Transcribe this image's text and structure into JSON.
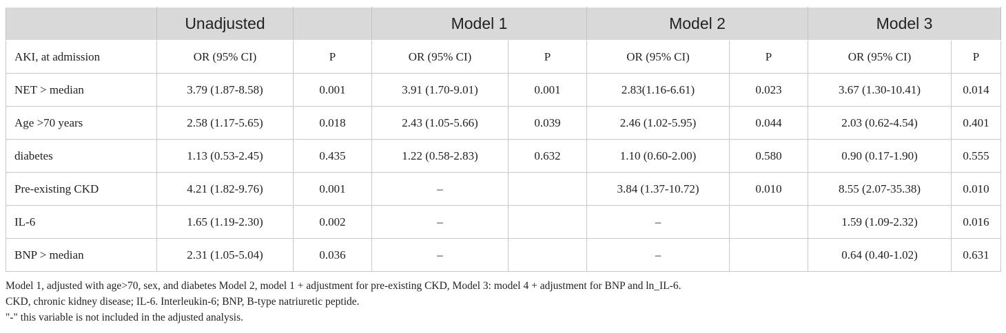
{
  "table": {
    "header": [
      "Unadjusted",
      "Model 1",
      "Model 2",
      "Model 3"
    ],
    "subheader": [
      "AKI, at admission",
      "OR (95% CI)",
      "P",
      "OR (95% CI)",
      "P",
      "OR (95% CI)",
      "P",
      "OR (95% CI)",
      "P"
    ],
    "rows": [
      [
        "NET > median",
        "3.79 (1.87-8.58)",
        "0.001",
        "3.91 (1.70-9.01)",
        "0.001",
        "2.83(1.16-6.61)",
        "0.023",
        "3.67 (1.30-10.41)",
        "0.014"
      ],
      [
        "Age >70 years",
        "2.58 (1.17-5.65)",
        "0.018",
        "2.43 (1.05-5.66)",
        "0.039",
        "2.46 (1.02-5.95)",
        "0.044",
        "2.03 (0.62-4.54)",
        "0.401"
      ],
      [
        "diabetes",
        "1.13 (0.53-2.45)",
        "0.435",
        "1.22 (0.58-2.83)",
        "0.632",
        "1.10 (0.60-2.00)",
        "0.580",
        "0.90 (0.17-1.90)",
        "0.555"
      ],
      [
        "Pre-existing CKD",
        "4.21 (1.82-9.76)",
        "0.001",
        "–",
        null,
        "3.84 (1.37-10.72)",
        "0.010",
        "8.55 (2.07-35.38)",
        "0.010"
      ],
      [
        "IL-6",
        "1.65 (1.19-2.30)",
        "0.002",
        "–",
        null,
        "–",
        null,
        "1.59 (1.09-2.32)",
        "0.016"
      ],
      [
        "BNP > median",
        "2.31 (1.05-5.04)",
        "0.036",
        "–",
        null,
        "–",
        null,
        "0.64 (0.40-1.02)",
        "0.631"
      ]
    ],
    "footnotes": [
      "Model 1, adjusted with age>70, sex, and diabetes Model 2, model 1 + adjustment for pre-existing CKD, Model 3: model 4 + adjustment for BNP and ln_IL-6.",
      "CKD, chronic kidney disease; IL-6. Interleukin-6; BNP, B-type natriuretic peptide.",
      "\"-\" this variable is not included in the adjusted analysis."
    ]
  }
}
